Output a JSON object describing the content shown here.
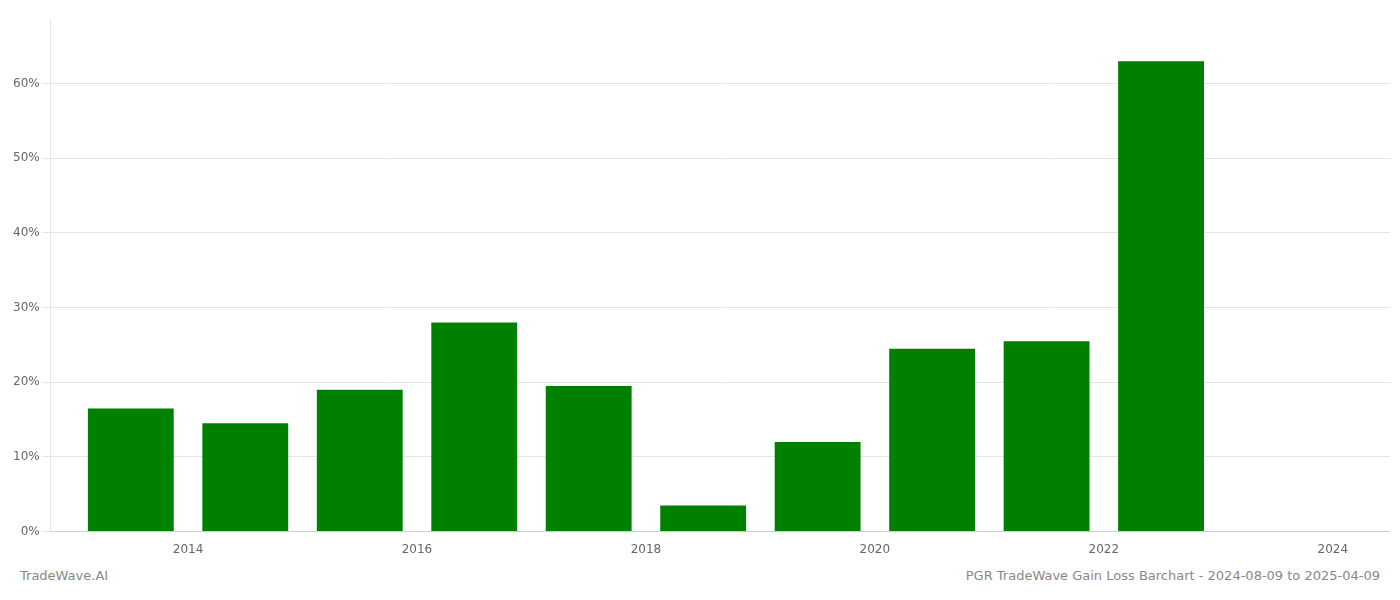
{
  "chart_data": {
    "type": "bar",
    "x": [
      2013.5,
      2014.5,
      2015.5,
      2016.5,
      2017.5,
      2018.5,
      2019.5,
      2020.5,
      2021.5,
      2022.5
    ],
    "values": [
      0.165,
      0.145,
      0.19,
      0.28,
      0.195,
      0.035,
      0.12,
      0.245,
      0.255,
      0.63
    ],
    "color": "#008000",
    "xlim": [
      2012.8,
      2024.5
    ],
    "xticks": [
      2014,
      2016,
      2018,
      2020,
      2022,
      2024
    ],
    "ylim": [
      0,
      0.685
    ],
    "yticks": [
      {
        "value": 0.0,
        "label": "0%"
      },
      {
        "value": 0.1,
        "label": "10%"
      },
      {
        "value": 0.2,
        "label": "20%"
      },
      {
        "value": 0.3,
        "label": "30%"
      },
      {
        "value": 0.4,
        "label": "40%"
      },
      {
        "value": 0.5,
        "label": "50%"
      },
      {
        "value": 0.6,
        "label": "60%"
      }
    ],
    "grid": true,
    "annotations": [
      "TradeWave.AI",
      "PGR TradeWave Gain Loss Barchart - 2024-08-09 to 2025-04-09"
    ]
  }
}
